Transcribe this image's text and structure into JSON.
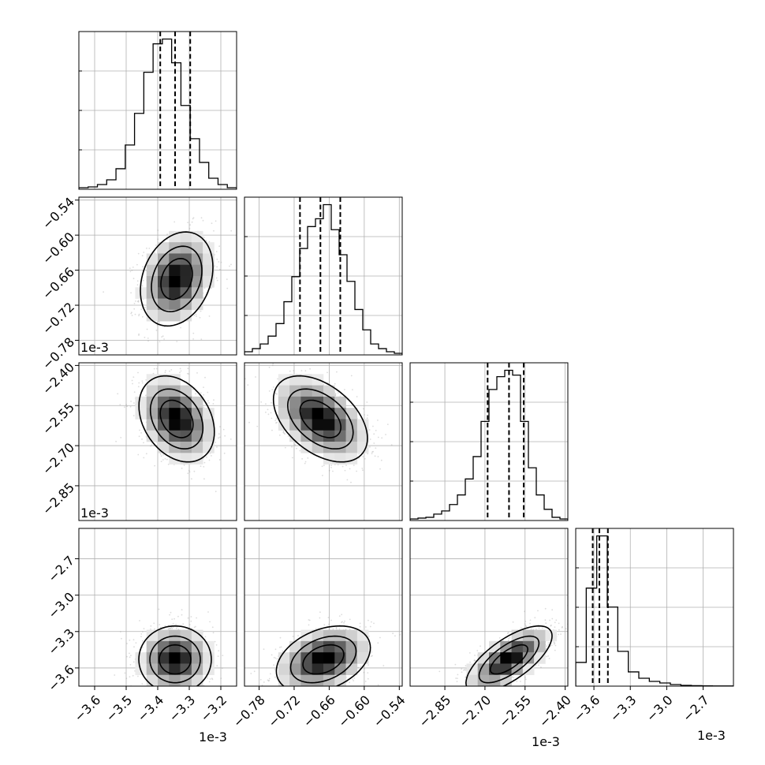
{
  "chart_data": {
    "type": "corner",
    "grid": true,
    "params": [
      {
        "offset_label": "1e-3",
        "range": [
          -3.65,
          -3.15
        ],
        "ticks": [
          -3.6,
          -3.5,
          -3.4,
          -3.3,
          -3.2
        ],
        "tick_labels": [
          "−3.6",
          "−3.5",
          "−3.4",
          "−3.3",
          "−3.2"
        ],
        "hist_counts": [
          0.01,
          0.015,
          0.03,
          0.06,
          0.13,
          0.28,
          0.48,
          0.74,
          0.92,
          0.95,
          0.8,
          0.53,
          0.32,
          0.17,
          0.07,
          0.03,
          0.01
        ],
        "quantiles": [
          -3.392,
          -3.345,
          -3.297
        ]
      },
      {
        "offset_label": "1e-3",
        "range": [
          -0.805,
          -0.535
        ],
        "ticks": [
          -0.78,
          -0.72,
          -0.66,
          -0.6,
          -0.54
        ],
        "tick_labels": [
          "−0.78",
          "−0.72",
          "−0.66",
          "−0.60",
          "−0.54"
        ],
        "hist_counts": [
          0.02,
          0.04,
          0.07,
          0.12,
          0.2,
          0.34,
          0.5,
          0.68,
          0.82,
          0.87,
          0.96,
          0.8,
          0.64,
          0.47,
          0.29,
          0.16,
          0.07,
          0.04,
          0.02,
          0.01
        ],
        "quantiles": [
          -0.71,
          -0.675,
          -0.641
        ]
      },
      {
        "offset_label": "1e-3",
        "range": [
          -2.98,
          -2.39
        ],
        "ticks": [
          -2.85,
          -2.7,
          -2.55,
          -2.4
        ],
        "tick_labels": [
          "−2.85",
          "−2.70",
          "−2.55",
          "−2.40"
        ],
        "hist_counts": [
          0.01,
          0.015,
          0.02,
          0.04,
          0.06,
          0.1,
          0.16,
          0.26,
          0.4,
          0.62,
          0.82,
          0.9,
          0.94,
          0.91,
          0.62,
          0.33,
          0.16,
          0.07,
          0.02,
          0.01
        ],
        "quantiles": [
          -2.69,
          -2.61,
          -2.555
        ]
      },
      {
        "offset_label": "1e-3",
        "range": [
          -3.75,
          -2.45
        ],
        "ticks": [
          -3.6,
          -3.3,
          -3.0,
          -2.7
        ],
        "tick_labels": [
          "−3.6",
          "−3.3",
          "−3.0",
          "−2.7"
        ],
        "hist_counts": [
          0.15,
          0.62,
          0.95,
          0.5,
          0.22,
          0.09,
          0.05,
          0.03,
          0.02,
          0.01,
          0.005,
          0.003,
          0.002,
          0.001,
          0.001
        ],
        "quantiles": [
          -3.61,
          -3.555,
          -3.485
        ]
      }
    ],
    "pairs": [
      {
        "x_index": 0,
        "y_index": 1,
        "mean": [
          -3.34,
          -0.675
        ],
        "sd": [
          0.05,
          0.035
        ],
        "rho": 0.25
      },
      {
        "x_index": 0,
        "y_index": 2,
        "mean": [
          -3.34,
          -2.6
        ],
        "sd": [
          0.052,
          0.07
        ],
        "rho": -0.3
      },
      {
        "x_index": 1,
        "y_index": 2,
        "mean": [
          -0.675,
          -2.6
        ],
        "sd": [
          0.035,
          0.07
        ],
        "rho": -0.45
      },
      {
        "x_index": 0,
        "y_index": 3,
        "mean": [
          -3.345,
          -3.53
        ],
        "sd": [
          0.05,
          0.12
        ],
        "rho": 0.0
      },
      {
        "x_index": 1,
        "y_index": 3,
        "mean": [
          -0.67,
          -3.53
        ],
        "sd": [
          0.035,
          0.12
        ],
        "rho": 0.35
      },
      {
        "x_index": 2,
        "y_index": 3,
        "mean": [
          -2.61,
          -3.53
        ],
        "sd": [
          0.07,
          0.12
        ],
        "rho": 0.7
      }
    ],
    "contour_levels": [
      1.0,
      1.6,
      2.3
    ]
  },
  "colors": {
    "axes": "#000000",
    "grid": "#b0b0b0",
    "hist": "#000000",
    "scatter": "#9a9a9a",
    "contour": "#000000"
  }
}
